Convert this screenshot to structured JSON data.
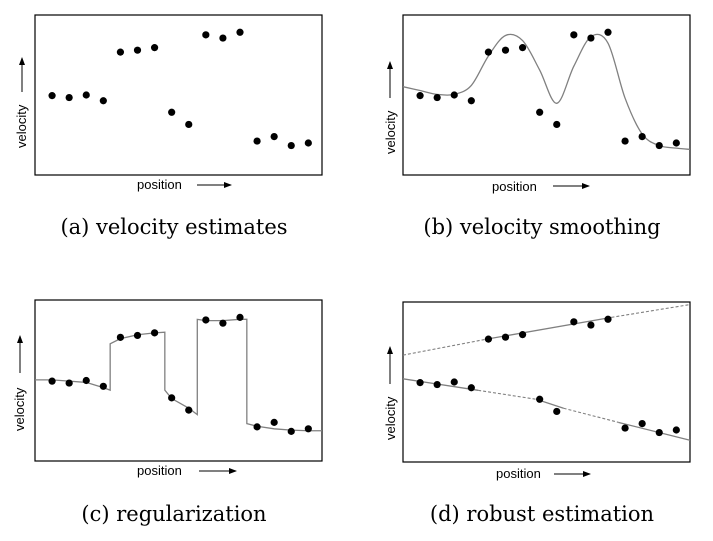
{
  "chart_data": [
    {
      "id": "a",
      "type": "scatter",
      "caption": "(a) velocity estimates",
      "xlabel": "position",
      "ylabel": "velocity",
      "series": [
        {
          "kind": "points",
          "points": [
            [
              1,
              6.2
            ],
            [
              2,
              6.05
            ],
            [
              3,
              6.25
            ],
            [
              4,
              5.8
            ],
            [
              5,
              9.6
            ],
            [
              6,
              9.75
            ],
            [
              7,
              9.95
            ],
            [
              8,
              4.9
            ],
            [
              9,
              3.95
            ],
            [
              10,
              10.95
            ],
            [
              11,
              10.7
            ],
            [
              12,
              11.15
            ],
            [
              13,
              2.65
            ],
            [
              14,
              3.0
            ],
            [
              15,
              2.3
            ],
            [
              16,
              2.5
            ]
          ]
        }
      ]
    },
    {
      "id": "b",
      "type": "line",
      "caption": "(b) velocity smoothing",
      "xlabel": "position",
      "ylabel": "velocity",
      "series": [
        {
          "kind": "points",
          "points": [
            [
              1,
              6.2
            ],
            [
              2,
              6.05
            ],
            [
              3,
              6.25
            ],
            [
              4,
              5.8
            ],
            [
              5,
              9.6
            ],
            [
              6,
              9.75
            ],
            [
              7,
              9.95
            ],
            [
              8,
              4.9
            ],
            [
              9,
              3.95
            ],
            [
              10,
              10.95
            ],
            [
              11,
              10.7
            ],
            [
              12,
              11.15
            ],
            [
              13,
              2.65
            ],
            [
              14,
              3.0
            ],
            [
              15,
              2.3
            ],
            [
              16,
              2.5
            ]
          ]
        },
        {
          "kind": "curve",
          "style": "solid",
          "points": [
            [
              0,
              6.9
            ],
            [
              1,
              6.6
            ],
            [
              2,
              6.3
            ],
            [
              3,
              6.3
            ],
            [
              4,
              7.0
            ],
            [
              5,
              9.3
            ],
            [
              6,
              10.9
            ],
            [
              7,
              10.5
            ],
            [
              8,
              8.2
            ],
            [
              9,
              5.6
            ],
            [
              10,
              8.5
            ],
            [
              11,
              10.8
            ],
            [
              12,
              10.3
            ],
            [
              13,
              6.0
            ],
            [
              14,
              3.2
            ],
            [
              15,
              2.3
            ],
            [
              16,
              2.1
            ],
            [
              16.8,
              2.0
            ]
          ]
        }
      ]
    },
    {
      "id": "c",
      "type": "line",
      "caption": "(c) regularization",
      "xlabel": "position",
      "ylabel": "velocity",
      "series": [
        {
          "kind": "points",
          "points": [
            [
              1,
              6.2
            ],
            [
              2,
              6.05
            ],
            [
              3,
              6.25
            ],
            [
              4,
              5.8
            ],
            [
              5,
              9.6
            ],
            [
              6,
              9.75
            ],
            [
              7,
              9.95
            ],
            [
              8,
              4.9
            ],
            [
              9,
              3.95
            ],
            [
              10,
              10.95
            ],
            [
              11,
              10.7
            ],
            [
              12,
              11.15
            ],
            [
              13,
              2.65
            ],
            [
              14,
              3.0
            ],
            [
              15,
              2.3
            ],
            [
              16,
              2.5
            ]
          ]
        },
        {
          "kind": "curve",
          "style": "solid",
          "points": [
            [
              0,
              6.3
            ],
            [
              1,
              6.3
            ],
            [
              2,
              6.2
            ],
            [
              3,
              6.1
            ],
            [
              4,
              5.7
            ],
            [
              4.4,
              5.5
            ],
            [
              4.4,
              9.1
            ],
            [
              5,
              9.5
            ],
            [
              6,
              9.8
            ],
            [
              7,
              9.95
            ],
            [
              7.6,
              10.0
            ],
            [
              7.6,
              5.5
            ],
            [
              8,
              4.85
            ],
            [
              9,
              4.1
            ],
            [
              9.5,
              3.6
            ],
            [
              9.5,
              11.0
            ],
            [
              10,
              10.9
            ],
            [
              11,
              10.9
            ],
            [
              12,
              11.0
            ],
            [
              12.4,
              11.0
            ],
            [
              12.4,
              2.9
            ],
            [
              13,
              2.7
            ],
            [
              14,
              2.5
            ],
            [
              15,
              2.4
            ],
            [
              16,
              2.35
            ],
            [
              16.8,
              2.35
            ]
          ]
        }
      ]
    },
    {
      "id": "d",
      "type": "line",
      "caption": "(d) robust estimation",
      "xlabel": "position",
      "ylabel": "velocity",
      "series": [
        {
          "kind": "points",
          "points": [
            [
              1,
              6.2
            ],
            [
              2,
              6.05
            ],
            [
              3,
              6.25
            ],
            [
              4,
              5.8
            ],
            [
              5,
              9.6
            ],
            [
              6,
              9.75
            ],
            [
              7,
              9.95
            ],
            [
              8,
              4.9
            ],
            [
              9,
              3.95
            ],
            [
              10,
              10.95
            ],
            [
              11,
              10.7
            ],
            [
              12,
              11.15
            ],
            [
              13,
              2.65
            ],
            [
              14,
              3.0
            ],
            [
              15,
              2.3
            ],
            [
              16,
              2.5
            ]
          ]
        },
        {
          "kind": "curve",
          "style": "dashed",
          "points": [
            [
              0,
              8.35
            ],
            [
              4.9,
              9.6
            ]
          ]
        },
        {
          "kind": "curve",
          "style": "solid",
          "points": [
            [
              4.9,
              9.6
            ],
            [
              12.2,
              11.3
            ]
          ]
        },
        {
          "kind": "curve",
          "style": "dashed",
          "points": [
            [
              12.2,
              11.3
            ],
            [
              16.8,
              12.3
            ]
          ]
        },
        {
          "kind": "curve",
          "style": "solid",
          "points": [
            [
              0,
              6.5
            ],
            [
              4.4,
              5.6
            ]
          ]
        },
        {
          "kind": "curve",
          "style": "dashed",
          "points": [
            [
              4.4,
              5.6
            ],
            [
              7.8,
              4.9
            ]
          ]
        },
        {
          "kind": "curve",
          "style": "solid",
          "points": [
            [
              7.8,
              4.9
            ],
            [
              9.4,
              4.2
            ]
          ]
        },
        {
          "kind": "curve",
          "style": "dashed",
          "points": [
            [
              9.4,
              4.2
            ],
            [
              12.6,
              3.1
            ]
          ]
        },
        {
          "kind": "curve",
          "style": "solid",
          "points": [
            [
              12.6,
              3.1
            ],
            [
              16.8,
              1.7
            ]
          ]
        }
      ]
    }
  ]
}
